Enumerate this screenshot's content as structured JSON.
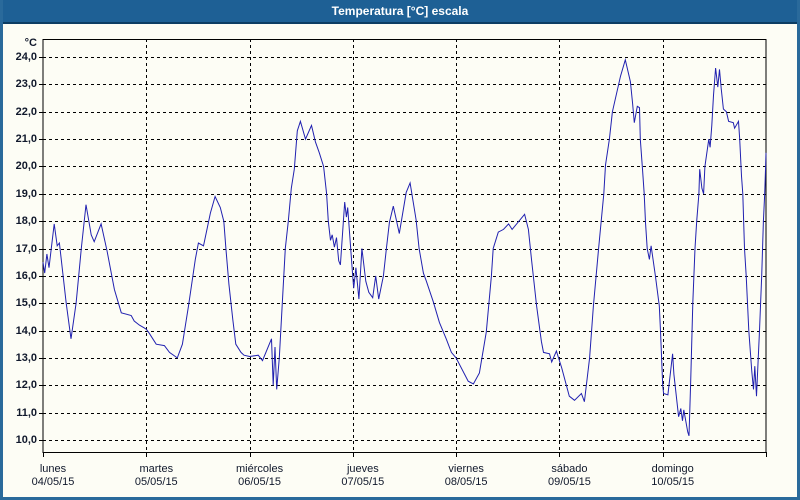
{
  "window": {
    "title": "Temperatura [°C] escala"
  },
  "chart_data": {
    "type": "line",
    "title": "Temperatura [°C] escala",
    "y_unit_label": "°C",
    "ylabel": "Temperatura [°C]",
    "xlabel": "",
    "ylim": [
      9.56,
      24.66
    ],
    "yticks": [
      24,
      23,
      22,
      21,
      20,
      19,
      18,
      17,
      16,
      15,
      14,
      13,
      12,
      11,
      10
    ],
    "ytick_labels": [
      "24,0",
      "23,0",
      "22,0",
      "21,0",
      "20,0",
      "19,0",
      "18,0",
      "17,0",
      "16,0",
      "15,0",
      "14,0",
      "13,0",
      "12,0",
      "11,0",
      "10,0"
    ],
    "x_total_hours": 168,
    "x_day_labels": [
      {
        "name": "lunes",
        "date": "04/05/15"
      },
      {
        "name": "martes",
        "date": "05/05/15"
      },
      {
        "name": "miércoles",
        "date": "06/05/15"
      },
      {
        "name": "jueves",
        "date": "07/05/15"
      },
      {
        "name": "viernes",
        "date": "08/05/15"
      },
      {
        "name": "sábado",
        "date": "09/05/15"
      },
      {
        "name": "domingo",
        "date": "10/05/15"
      }
    ],
    "grid": "dashed",
    "grid_color": "#000000",
    "plot_bg": "#fdfdf5",
    "axis_color": "#000000",
    "axis_label_color": "#10182b",
    "titlebar_bg": "#1e6095",
    "window_border_color": "#2a6a9b",
    "series": [
      {
        "name": "Temperatura [°C]",
        "color": "#2121b0",
        "points": [
          [
            0,
            16.5
          ],
          [
            0.4,
            16.1
          ],
          [
            0.9,
            16.8
          ],
          [
            1.4,
            16.3
          ],
          [
            2.6,
            17.9
          ],
          [
            3.3,
            17.1
          ],
          [
            3.8,
            17.2
          ],
          [
            5.4,
            15.0
          ],
          [
            6.5,
            13.7
          ],
          [
            7.7,
            15.0
          ],
          [
            8.9,
            17.0
          ],
          [
            10.0,
            18.6
          ],
          [
            11.2,
            17.5
          ],
          [
            11.9,
            17.25
          ],
          [
            13.5,
            17.9
          ],
          [
            14.9,
            16.9
          ],
          [
            16.6,
            15.5
          ],
          [
            18.2,
            14.65
          ],
          [
            20.5,
            14.55
          ],
          [
            21.2,
            14.35
          ],
          [
            22.4,
            14.2
          ],
          [
            23.5,
            14.1
          ],
          [
            24.0,
            14.05
          ],
          [
            24.7,
            13.9
          ],
          [
            26.3,
            13.5
          ],
          [
            28.2,
            13.45
          ],
          [
            29.4,
            13.2
          ],
          [
            31.2,
            13.0
          ],
          [
            32.4,
            13.5
          ],
          [
            33.8,
            14.9
          ],
          [
            35.4,
            16.6
          ],
          [
            36.1,
            17.2
          ],
          [
            37.3,
            17.1
          ],
          [
            38.9,
            18.3
          ],
          [
            40.0,
            18.9
          ],
          [
            41.2,
            18.5
          ],
          [
            42.0,
            18.0
          ],
          [
            42.5,
            17.0
          ],
          [
            43.2,
            15.7
          ],
          [
            44.1,
            14.4
          ],
          [
            44.8,
            13.5
          ],
          [
            46.0,
            13.2
          ],
          [
            46.7,
            13.1
          ],
          [
            48.0,
            13.05
          ],
          [
            50.0,
            13.1
          ],
          [
            51.0,
            12.9
          ],
          [
            53.1,
            13.7
          ],
          [
            53.5,
            12.0
          ],
          [
            53.9,
            13.4
          ],
          [
            54.3,
            11.85
          ],
          [
            54.9,
            13.0
          ],
          [
            55.6,
            15.0
          ],
          [
            56.3,
            17.0
          ],
          [
            57.0,
            18.0
          ],
          [
            57.7,
            19.2
          ],
          [
            58.4,
            19.9
          ],
          [
            59.1,
            21.3
          ],
          [
            59.8,
            21.65
          ],
          [
            61.0,
            21.0
          ],
          [
            62.4,
            21.5
          ],
          [
            63.3,
            20.9
          ],
          [
            64.2,
            20.5
          ],
          [
            65.2,
            20.0
          ],
          [
            65.9,
            19.0
          ],
          [
            66.3,
            18.0
          ],
          [
            66.8,
            17.3
          ],
          [
            67.2,
            17.5
          ],
          [
            67.7,
            17.05
          ],
          [
            68.2,
            17.4
          ],
          [
            68.7,
            16.55
          ],
          [
            69.1,
            16.4
          ],
          [
            70.1,
            18.7
          ],
          [
            70.5,
            18.15
          ],
          [
            70.8,
            18.5
          ],
          [
            71.5,
            17.0
          ],
          [
            72.0,
            15.9
          ],
          [
            72.2,
            15.55
          ],
          [
            72.7,
            16.3
          ],
          [
            73.4,
            15.15
          ],
          [
            74.1,
            17.0
          ],
          [
            75.0,
            15.8
          ],
          [
            75.7,
            15.4
          ],
          [
            76.6,
            15.2
          ],
          [
            77.3,
            16.0
          ],
          [
            78.0,
            15.15
          ],
          [
            79.1,
            16.0
          ],
          [
            79.8,
            17.0
          ],
          [
            80.5,
            17.95
          ],
          [
            81.4,
            18.55
          ],
          [
            82.8,
            17.55
          ],
          [
            84.4,
            19.05
          ],
          [
            85.3,
            19.4
          ],
          [
            86.7,
            18.05
          ],
          [
            87.4,
            17.0
          ],
          [
            88.4,
            16.1
          ],
          [
            89.1,
            15.8
          ],
          [
            90.7,
            15.05
          ],
          [
            92.1,
            14.3
          ],
          [
            93.7,
            13.7
          ],
          [
            94.9,
            13.2
          ],
          [
            96.0,
            13.0
          ],
          [
            98.8,
            12.15
          ],
          [
            100.0,
            12.05
          ],
          [
            101.4,
            12.45
          ],
          [
            103.0,
            13.95
          ],
          [
            104.2,
            16.0
          ],
          [
            104.6,
            17.0
          ],
          [
            105.8,
            17.6
          ],
          [
            107.0,
            17.7
          ],
          [
            108.2,
            17.9
          ],
          [
            109.0,
            17.7
          ],
          [
            111.9,
            18.25
          ],
          [
            112.8,
            17.7
          ],
          [
            113.5,
            16.6
          ],
          [
            114.7,
            14.9
          ],
          [
            115.8,
            13.6
          ],
          [
            116.3,
            13.2
          ],
          [
            117.7,
            13.15
          ],
          [
            118.2,
            12.85
          ],
          [
            119.3,
            13.25
          ],
          [
            120.0,
            12.9
          ],
          [
            120.5,
            12.65
          ],
          [
            122.3,
            11.6
          ],
          [
            123.5,
            11.45
          ],
          [
            125.1,
            11.7
          ],
          [
            125.8,
            11.4
          ],
          [
            127.0,
            13.0
          ],
          [
            127.9,
            14.9
          ],
          [
            129.1,
            17.0
          ],
          [
            130.3,
            19.0
          ],
          [
            130.7,
            20.05
          ],
          [
            131.6,
            21.0
          ],
          [
            132.3,
            22.0
          ],
          [
            134.2,
            23.3
          ],
          [
            135.3,
            23.9
          ],
          [
            136.5,
            23.1
          ],
          [
            137.0,
            22.3
          ],
          [
            137.4,
            21.6
          ],
          [
            138.1,
            22.2
          ],
          [
            138.6,
            22.15
          ],
          [
            138.8,
            21.0
          ],
          [
            139.3,
            19.9
          ],
          [
            139.7,
            19.0
          ],
          [
            140.0,
            17.95
          ],
          [
            140.4,
            17.0
          ],
          [
            140.9,
            16.6
          ],
          [
            141.3,
            17.1
          ],
          [
            142.3,
            16.0
          ],
          [
            143.2,
            14.9
          ],
          [
            143.5,
            13.9
          ],
          [
            144.0,
            12.0
          ],
          [
            144.2,
            11.7
          ],
          [
            145.2,
            11.65
          ],
          [
            146.3,
            13.15
          ],
          [
            146.6,
            12.4
          ],
          [
            147.7,
            10.85
          ],
          [
            148.2,
            11.15
          ],
          [
            148.6,
            10.7
          ],
          [
            148.9,
            11.1
          ],
          [
            149.8,
            10.3
          ],
          [
            150.1,
            10.15
          ],
          [
            150.5,
            12.15
          ],
          [
            151.0,
            15.0
          ],
          [
            151.5,
            17.0
          ],
          [
            151.9,
            18.0
          ],
          [
            152.4,
            19.0
          ],
          [
            152.6,
            19.9
          ],
          [
            153.1,
            19.2
          ],
          [
            153.5,
            19.0
          ],
          [
            153.8,
            20.0
          ],
          [
            154.7,
            21.0
          ],
          [
            155.0,
            20.7
          ],
          [
            155.4,
            21.5
          ],
          [
            155.8,
            22.6
          ],
          [
            156.3,
            23.6
          ],
          [
            156.8,
            22.9
          ],
          [
            157.2,
            23.55
          ],
          [
            157.6,
            22.85
          ],
          [
            158.1,
            22.1
          ],
          [
            158.8,
            22.0
          ],
          [
            159.3,
            21.65
          ],
          [
            160.4,
            21.6
          ],
          [
            160.7,
            21.4
          ],
          [
            161.6,
            21.65
          ],
          [
            161.9,
            21.0
          ],
          [
            162.3,
            19.65
          ],
          [
            162.6,
            19.0
          ],
          [
            163.0,
            17.0
          ],
          [
            163.4,
            16.0
          ],
          [
            163.7,
            15.0
          ],
          [
            164.0,
            14.0
          ],
          [
            164.7,
            12.5
          ],
          [
            165.1,
            11.85
          ],
          [
            165.4,
            12.7
          ],
          [
            165.8,
            11.6
          ],
          [
            166.5,
            14.0
          ],
          [
            167.0,
            16.0
          ],
          [
            167.4,
            18.0
          ],
          [
            167.7,
            19.0
          ],
          [
            167.9,
            20.0
          ],
          [
            168.0,
            20.5
          ]
        ]
      }
    ]
  }
}
